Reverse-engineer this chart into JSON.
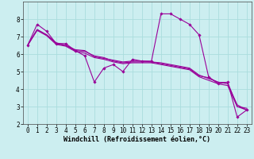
{
  "xlabel": "Windchill (Refroidissement éolien,°C)",
  "ylabel": "",
  "bg_color": "#cceef0",
  "grid_color": "#aadddd",
  "line_color": "#990099",
  "xlim": [
    -0.5,
    23.5
  ],
  "ylim": [
    2,
    9
  ],
  "xticks": [
    0,
    1,
    2,
    3,
    4,
    5,
    6,
    7,
    8,
    9,
    10,
    11,
    12,
    13,
    14,
    15,
    16,
    17,
    18,
    19,
    20,
    21,
    22,
    23
  ],
  "yticks": [
    2,
    3,
    4,
    5,
    6,
    7,
    8
  ],
  "lines": [
    {
      "x": [
        0,
        1,
        2,
        3,
        4,
        5,
        6,
        7,
        8,
        9,
        10,
        11,
        12,
        13,
        14,
        15,
        16,
        17,
        18,
        19,
        20,
        21,
        22,
        23
      ],
      "y": [
        6.5,
        7.7,
        7.3,
        6.6,
        6.6,
        6.2,
        5.9,
        4.4,
        5.2,
        5.4,
        5.0,
        5.7,
        5.6,
        5.6,
        8.3,
        8.3,
        8.0,
        7.7,
        7.1,
        4.7,
        4.3,
        4.4,
        2.4,
        2.8
      ]
    },
    {
      "x": [
        0,
        1,
        2,
        3,
        4,
        5,
        6,
        7,
        8,
        9,
        10,
        11,
        12,
        13,
        14,
        15,
        16,
        17,
        18,
        19,
        20,
        21,
        22,
        23
      ],
      "y": [
        6.5,
        7.4,
        7.1,
        6.65,
        6.5,
        6.25,
        6.2,
        5.85,
        5.75,
        5.65,
        5.55,
        5.6,
        5.6,
        5.55,
        5.5,
        5.4,
        5.3,
        5.2,
        4.8,
        4.6,
        4.4,
        4.3,
        3.1,
        2.8
      ]
    },
    {
      "x": [
        0,
        1,
        2,
        3,
        4,
        5,
        6,
        7,
        8,
        9,
        10,
        11,
        12,
        13,
        14,
        15,
        16,
        17,
        18,
        19,
        20,
        21,
        22,
        23
      ],
      "y": [
        6.5,
        7.4,
        7.1,
        6.6,
        6.5,
        6.2,
        6.15,
        5.9,
        5.8,
        5.6,
        5.5,
        5.55,
        5.55,
        5.55,
        5.45,
        5.35,
        5.25,
        5.15,
        4.75,
        4.65,
        4.38,
        4.38,
        3.0,
        2.9
      ]
    },
    {
      "x": [
        0,
        1,
        2,
        3,
        4,
        5,
        6,
        7,
        8,
        9,
        10,
        11,
        12,
        13,
        14,
        15,
        16,
        17,
        18,
        19,
        20,
        21,
        22,
        23
      ],
      "y": [
        6.5,
        7.35,
        7.05,
        6.55,
        6.45,
        6.15,
        6.05,
        5.8,
        5.7,
        5.55,
        5.45,
        5.5,
        5.5,
        5.5,
        5.4,
        5.3,
        5.2,
        5.1,
        4.7,
        4.5,
        4.3,
        4.2,
        3.0,
        2.8
      ]
    }
  ]
}
